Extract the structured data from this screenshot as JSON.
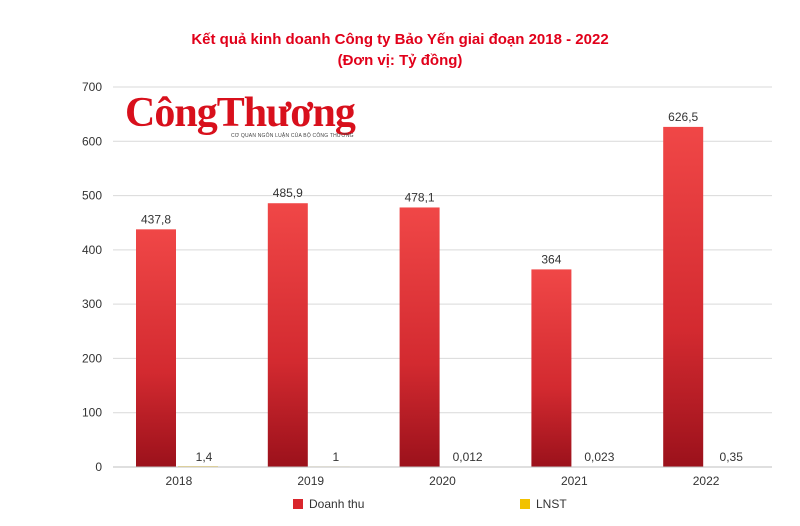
{
  "title": "Kết quả kinh doanh Công ty Bảo Yến giai đoạn 2018 - 2022",
  "subtitle": "(Đơn vị: Tỷ đồng)",
  "watermark": {
    "brand": "CôngThương",
    "tagline": "CƠ QUAN NGÔN LUẬN CỦA BỘ CÔNG THƯƠNG"
  },
  "colors": {
    "accent": "#e1001a",
    "doanh_thu_top": "#f04444",
    "doanh_thu_bottom": "#a5121c",
    "lnst": "#f2c200"
  },
  "chart_data": {
    "type": "bar",
    "categories": [
      "2018",
      "2019",
      "2020",
      "2021",
      "2022"
    ],
    "series": [
      {
        "name": "Doanh thu",
        "values": [
          437.8,
          485.9,
          478.1,
          364,
          626.5
        ],
        "labels": [
          "437,8",
          "485,9",
          "478,1",
          "364",
          "626,5"
        ]
      },
      {
        "name": "LNST",
        "values": [
          1.4,
          1,
          0.012,
          0.023,
          0.35
        ],
        "labels": [
          "1,4",
          "1",
          "0,012",
          "0,023",
          "0,35"
        ]
      }
    ],
    "ylim": [
      0,
      700
    ],
    "yticks": [
      0,
      100,
      200,
      300,
      400,
      500,
      600,
      700
    ],
    "grid": true,
    "legend": "bottom"
  }
}
